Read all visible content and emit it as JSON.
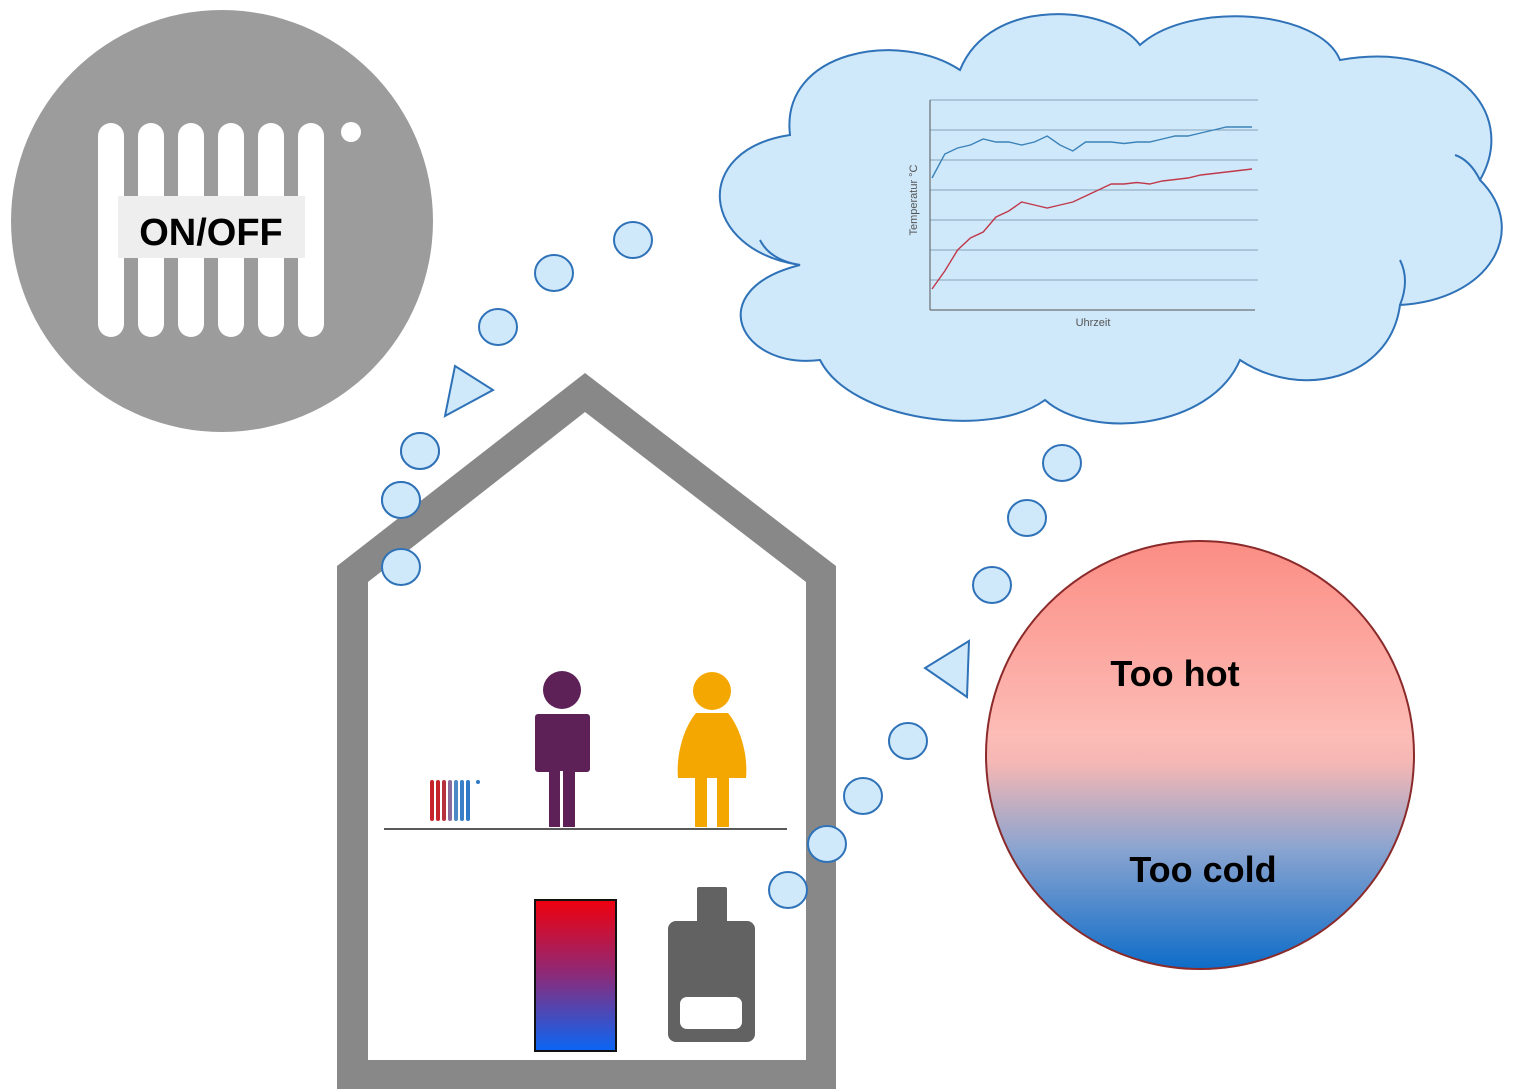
{
  "onoff": {
    "label": "ON/OFF"
  },
  "thermal": {
    "hot_label": "Too hot",
    "cold_label": "Too cold"
  },
  "chart_data": {
    "type": "line",
    "ylabel": "Temperatur °C",
    "xlabel": "Uhrzeit",
    "x": [
      0,
      1,
      2,
      3,
      4,
      5,
      6,
      7,
      8,
      9,
      10,
      11,
      12,
      13,
      14,
      15,
      16,
      17,
      18,
      19,
      20,
      21,
      22,
      23,
      24,
      25
    ],
    "ylim": [
      0,
      7
    ],
    "series": [
      {
        "values": [
          4.4,
          5.2,
          5.4,
          5.5,
          5.7,
          5.6,
          5.6,
          5.5,
          5.6,
          5.8,
          5.5,
          5.3,
          5.6,
          5.6,
          5.6,
          5.55,
          5.6,
          5.6,
          5.7,
          5.8,
          5.8,
          5.9,
          6.0,
          6.1,
          6.1,
          6.1
        ]
      },
      {
        "values": [
          0.7,
          1.3,
          2.0,
          2.4,
          2.6,
          3.1,
          3.3,
          3.6,
          3.5,
          3.4,
          3.5,
          3.6,
          3.8,
          4.0,
          4.2,
          4.2,
          4.25,
          4.2,
          4.3,
          4.35,
          4.4,
          4.5,
          4.55,
          4.6,
          4.65,
          4.7
        ]
      }
    ],
    "colors": {
      "series0": "#3b82b8",
      "series1": "#c0394a"
    },
    "grid": true
  },
  "colors": {
    "bubble_fill": "#cfe9fb",
    "bubble_stroke": "#2f72b8",
    "house": "#888888",
    "onoff_circle": "#9c9c9c",
    "person_male": "#5e2157",
    "person_female": "#f4a700",
    "boiler": "#626262"
  }
}
